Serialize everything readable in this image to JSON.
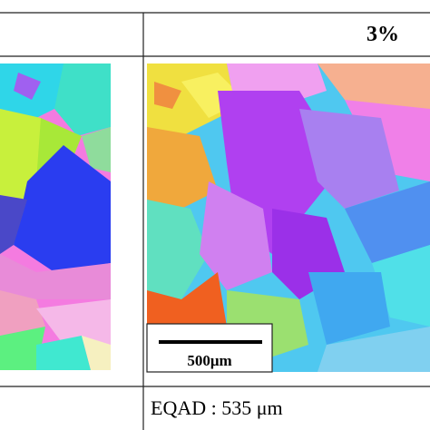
{
  "header": {
    "right": "3%"
  },
  "scale_bar": {
    "label": "500μm"
  },
  "footer": {
    "right": "EQAD : 535 μm"
  }
}
